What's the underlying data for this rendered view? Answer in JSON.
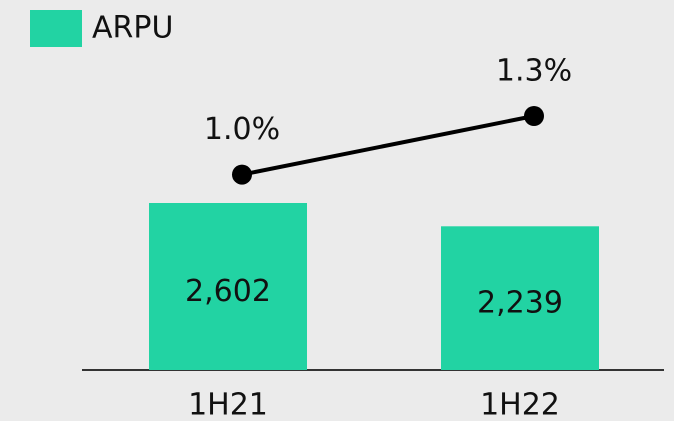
{
  "chart_data": {
    "type": "bar",
    "categories": [
      "1H21",
      "1H22"
    ],
    "series": [
      {
        "name": "ARPU",
        "type": "bar",
        "color": "#22d3a3",
        "values": [
          2602,
          2239
        ],
        "value_labels": [
          "2,602",
          "2,239"
        ]
      },
      {
        "type": "line",
        "axis": "y2",
        "color": "#000000",
        "values": [
          1.0,
          1.3
        ],
        "value_labels": [
          "1.0%",
          "1.3%"
        ]
      }
    ],
    "legend": "top-left"
  }
}
